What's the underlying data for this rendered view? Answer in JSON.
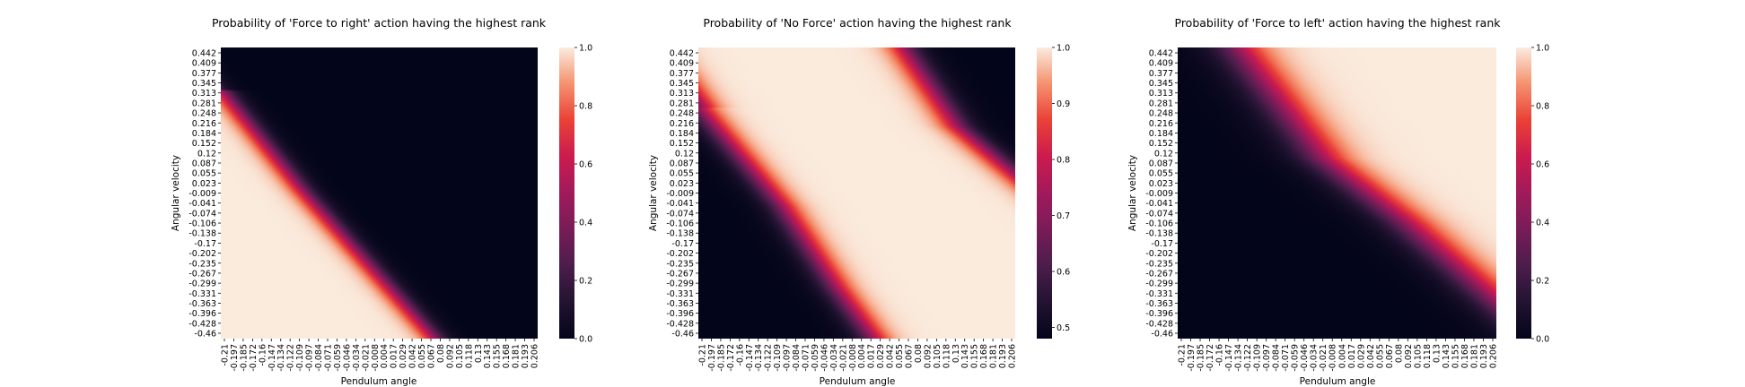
{
  "chart_data": [
    {
      "type": "heatmap",
      "title": "Probability of 'Force to right' action having the highest rank",
      "xlabel": "Pendulum angle",
      "ylabel": "Angular velocity",
      "x_tick_labels": [
        "-0.21",
        "-0.197",
        "-0.185",
        "-0.172",
        "-0.16",
        "-0.147",
        "-0.134",
        "-0.122",
        "-0.109",
        "-0.097",
        "-0.084",
        "-0.071",
        "-0.059",
        "-0.046",
        "-0.034",
        "-0.021",
        "-0.008",
        "0.004",
        "0.017",
        "0.029",
        "0.042",
        "0.055",
        "0.067",
        "0.08",
        "0.092",
        "0.105",
        "0.118",
        "0.13",
        "0.143",
        "0.155",
        "0.168",
        "0.181",
        "0.193",
        "0.206"
      ],
      "y_tick_labels": [
        "0.442",
        "0.409",
        "0.377",
        "0.345",
        "0.313",
        "0.281",
        "0.248",
        "0.216",
        "0.184",
        "0.152",
        "0.12",
        "0.087",
        "0.055",
        "0.023",
        "-0.009",
        "-0.041",
        "-0.074",
        "-0.106",
        "-0.138",
        "-0.17",
        "-0.202",
        "-0.235",
        "-0.267",
        "-0.299",
        "-0.331",
        "-0.363",
        "-0.396",
        "-0.428",
        "-0.46"
      ],
      "xlim": [
        -0.21,
        0.206
      ],
      "ylim": [
        -0.46,
        0.442
      ],
      "colorbar": {
        "min": 0.0,
        "max": 1.0,
        "ticks": [
          "0.0",
          "0.2",
          "0.4",
          "0.6",
          "0.8",
          "1.0"
        ],
        "tick_values": [
          0.0,
          0.2,
          0.4,
          0.6,
          0.8,
          1.0
        ]
      },
      "colormap": "rocket",
      "pattern": "Probability ~1.0 in lower-left region, ~0.0 in upper-right; diagonal transition band. Boundary (p=0.5) runs from about (-0.21, 0.31) at top-left to about (0.07, -0.46) at bottom.",
      "boundary_points": [
        [
          -0.21,
          0.31
        ],
        [
          -0.104,
          0.0
        ],
        [
          0.07,
          -0.46
        ]
      ],
      "transition_width": 0.022,
      "direction": "low_left_high"
    },
    {
      "type": "heatmap",
      "title": "Probability of 'No Force' action having the highest rank",
      "xlabel": "Pendulum angle",
      "ylabel": "Angular velocity",
      "x_tick_labels": [
        "-0.21",
        "-0.197",
        "-0.185",
        "-0.172",
        "-0.16",
        "-0.147",
        "-0.134",
        "-0.122",
        "-0.109",
        "-0.097",
        "-0.084",
        "-0.071",
        "-0.059",
        "-0.046",
        "-0.034",
        "-0.021",
        "-0.008",
        "0.004",
        "0.017",
        "0.029",
        "0.042",
        "0.055",
        "0.067",
        "0.08",
        "0.092",
        "0.105",
        "0.118",
        "0.13",
        "0.143",
        "0.155",
        "0.168",
        "0.181",
        "0.193",
        "0.206"
      ],
      "y_tick_labels": [
        "0.442",
        "0.409",
        "0.377",
        "0.345",
        "0.313",
        "0.281",
        "0.248",
        "0.216",
        "0.184",
        "0.152",
        "0.12",
        "0.087",
        "0.055",
        "0.023",
        "-0.009",
        "-0.041",
        "-0.074",
        "-0.106",
        "-0.138",
        "-0.17",
        "-0.202",
        "-0.235",
        "-0.267",
        "-0.299",
        "-0.331",
        "-0.363",
        "-0.396",
        "-0.428",
        "-0.46"
      ],
      "xlim": [
        -0.21,
        0.206
      ],
      "ylim": [
        -0.46,
        0.442
      ],
      "colorbar": {
        "min": 0.48,
        "max": 1.0,
        "ticks": [
          "0.5",
          "0.6",
          "0.7",
          "0.8",
          "0.9",
          "1.0"
        ],
        "tick_values": [
          0.5,
          0.6,
          0.7,
          0.8,
          0.9,
          1.0
        ]
      },
      "colormap": "rocket",
      "pattern": "Probability ~1.0 across a central diagonal band; drops toward ~0.5 in the lower-left corner and in the upper-right corner.",
      "lower_left_boundary": [
        [
          -0.21,
          0.26
        ],
        [
          -0.1,
          -0.05
        ],
        [
          -0.03,
          -0.3
        ],
        [
          0.02,
          -0.46
        ]
      ],
      "upper_right_boundary": [
        [
          0.06,
          0.442
        ],
        [
          0.13,
          0.2
        ],
        [
          0.206,
          0.05
        ]
      ],
      "band_width": 0.028
    },
    {
      "type": "heatmap",
      "title": "Probability of 'Force to left' action having the highest rank",
      "xlabel": "Pendulum angle",
      "ylabel": "Angular velocity",
      "x_tick_labels": [
        "-0.21",
        "-0.197",
        "-0.185",
        "-0.172",
        "-0.16",
        "-0.147",
        "-0.134",
        "-0.122",
        "-0.109",
        "-0.097",
        "-0.084",
        "-0.071",
        "-0.059",
        "-0.046",
        "-0.034",
        "-0.021",
        "-0.008",
        "0.004",
        "0.017",
        "0.029",
        "0.042",
        "0.055",
        "0.067",
        "0.08",
        "0.092",
        "0.105",
        "0.118",
        "0.13",
        "0.143",
        "0.155",
        "0.168",
        "0.181",
        "0.193",
        "0.206"
      ],
      "y_tick_labels": [
        "0.442",
        "0.409",
        "0.377",
        "0.345",
        "0.313",
        "0.281",
        "0.248",
        "0.216",
        "0.184",
        "0.152",
        "0.12",
        "0.087",
        "0.055",
        "0.023",
        "-0.009",
        "-0.041",
        "-0.074",
        "-0.106",
        "-0.138",
        "-0.17",
        "-0.202",
        "-0.235",
        "-0.267",
        "-0.299",
        "-0.331",
        "-0.363",
        "-0.396",
        "-0.428",
        "-0.46"
      ],
      "xlim": [
        -0.21,
        0.206
      ],
      "ylim": [
        -0.46,
        0.442
      ],
      "colorbar": {
        "min": 0.0,
        "max": 1.0,
        "ticks": [
          "0.0",
          "0.2",
          "0.4",
          "0.6",
          "0.8",
          "1.0"
        ],
        "tick_values": [
          0.0,
          0.2,
          0.4,
          0.6,
          0.8,
          1.0
        ]
      },
      "colormap": "rocket",
      "pattern": "Probability ~0.0 in lower-left region, ~1.0 in upper-right region; wide diagonal transition band from top-left toward bottom-right.",
      "boundary_points": [
        [
          -0.13,
          0.442
        ],
        [
          -0.02,
          0.1
        ],
        [
          0.09,
          -0.1
        ],
        [
          0.206,
          -0.34
        ]
      ],
      "transition_width": 0.045,
      "direction": "low_right_high"
    }
  ]
}
